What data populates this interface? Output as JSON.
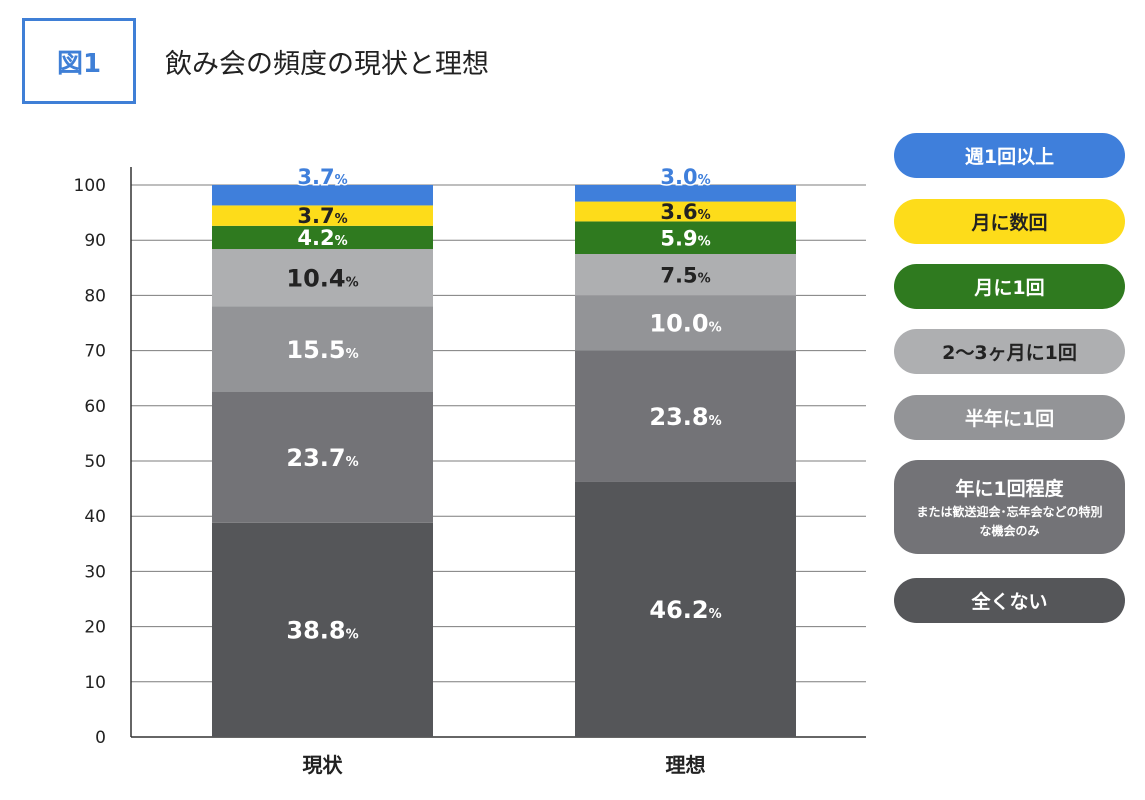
{
  "figure_label": "図1",
  "title": "飲み会の頻度の現状と理想",
  "legend": [
    {
      "label": "週1回以上",
      "sub": "",
      "color": "#3f7fdb",
      "text_color": "#ffffff"
    },
    {
      "label": "月に数回",
      "sub": "",
      "color": "#fddc1a",
      "text_color": "#222222"
    },
    {
      "label": "月に1回",
      "sub": "",
      "color": "#2f7a1f",
      "text_color": "#ffffff"
    },
    {
      "label": "2〜3ヶ月に1回",
      "sub": "",
      "color": "#aeafb1",
      "text_color": "#222222"
    },
    {
      "label": "半年に1回",
      "sub": "",
      "color": "#939497",
      "text_color": "#ffffff"
    },
    {
      "label": "年に1回程度",
      "sub": "または歓送迎会･忘年会などの特別な機会のみ",
      "color": "#737377",
      "text_color": "#ffffff"
    },
    {
      "label": "全くない",
      "sub": "",
      "color": "#555659",
      "text_color": "#ffffff"
    }
  ],
  "chart_data": {
    "type": "bar",
    "stacked": true,
    "categories": [
      "現状",
      "理想"
    ],
    "ylim": [
      0,
      100
    ],
    "yticks": [
      0,
      10,
      20,
      30,
      40,
      50,
      60,
      70,
      80,
      90,
      100
    ],
    "grid": true,
    "value_suffix": "%",
    "series": [
      {
        "name": "全くない",
        "values": [
          38.8,
          46.2
        ],
        "color": "#555659",
        "label_color": "#ffffff"
      },
      {
        "name": "年に1回程度",
        "values": [
          23.7,
          23.8
        ],
        "color": "#737377",
        "label_color": "#ffffff"
      },
      {
        "name": "半年に1回",
        "values": [
          15.5,
          10.0
        ],
        "color": "#939497",
        "label_color": "#ffffff"
      },
      {
        "name": "2〜3ヶ月に1回",
        "values": [
          10.4,
          7.5
        ],
        "color": "#aeafb1",
        "label_color": "#222222"
      },
      {
        "name": "月に1回",
        "values": [
          4.2,
          5.9
        ],
        "color": "#2f7a1f",
        "label_color": "#ffffff"
      },
      {
        "name": "月に数回",
        "values": [
          3.7,
          3.6
        ],
        "color": "#fddc1a",
        "label_color": "#222222"
      },
      {
        "name": "週1回以上",
        "values": [
          3.7,
          3.0
        ],
        "color": "#3f7fdb",
        "label_color": "#3f7fdb"
      }
    ],
    "value_labels": [
      [
        "38.8",
        "23.7",
        "15.5",
        "10.4",
        "4.2",
        "3.7",
        "3.7"
      ],
      [
        "46.2",
        "23.8",
        "10.0",
        "7.5",
        "5.9",
        "3.6",
        "3.0"
      ]
    ]
  }
}
